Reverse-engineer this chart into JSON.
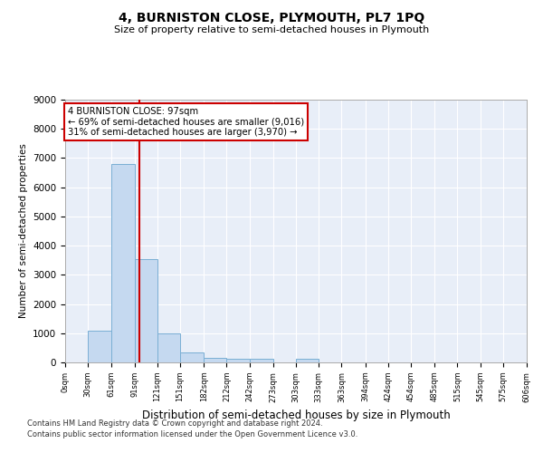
{
  "title": "4, BURNISTON CLOSE, PLYMOUTH, PL7 1PQ",
  "subtitle": "Size of property relative to semi-detached houses in Plymouth",
  "xlabel": "Distribution of semi-detached houses by size in Plymouth",
  "ylabel": "Number of semi-detached properties",
  "bar_color": "#c5d9f0",
  "bar_edge_color": "#7aafd4",
  "background_color": "#e8eef8",
  "grid_color": "#ffffff",
  "bin_edges": [
    0,
    30,
    61,
    91,
    121,
    151,
    182,
    212,
    242,
    273,
    303,
    333,
    363,
    394,
    424,
    454,
    485,
    515,
    545,
    575,
    606
  ],
  "bar_heights": [
    0,
    1100,
    6800,
    3550,
    1000,
    350,
    150,
    120,
    110,
    0,
    110,
    0,
    0,
    0,
    0,
    0,
    0,
    0,
    0,
    0
  ],
  "property_size": 97,
  "property_name": "4 BURNISTON CLOSE: 97sqm",
  "pct_smaller": 69,
  "n_smaller": 9016,
  "pct_larger": 31,
  "n_larger": 3970,
  "annotation_box_color": "#ffffff",
  "annotation_box_edge_color": "#cc0000",
  "vline_color": "#cc0000",
  "ylim": [
    0,
    9000
  ],
  "tick_labels": [
    "0sqm",
    "30sqm",
    "61sqm",
    "91sqm",
    "121sqm",
    "151sqm",
    "182sqm",
    "212sqm",
    "242sqm",
    "273sqm",
    "303sqm",
    "333sqm",
    "363sqm",
    "394sqm",
    "424sqm",
    "454sqm",
    "485sqm",
    "515sqm",
    "545sqm",
    "575sqm",
    "606sqm"
  ],
  "footnote1": "Contains HM Land Registry data © Crown copyright and database right 2024.",
  "footnote2": "Contains public sector information licensed under the Open Government Licence v3.0."
}
